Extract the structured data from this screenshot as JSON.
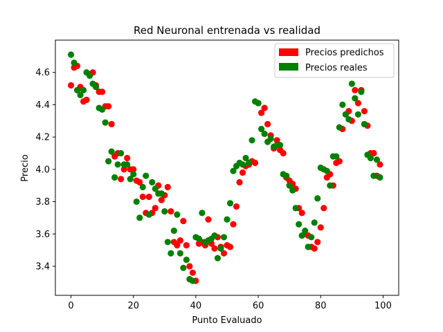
{
  "chart_data": {
    "type": "scatter",
    "title": "Red Neuronal entrenada vs realidad",
    "xlabel": "Punto Evaluado",
    "ylabel": "Precio",
    "xlim": [
      -5,
      105
    ],
    "ylim": [
      3.22,
      4.8
    ],
    "xticks": [
      0,
      20,
      40,
      60,
      80,
      100
    ],
    "yticks": [
      3.4,
      3.6,
      3.8,
      4.0,
      4.2,
      4.4,
      4.6
    ],
    "grid": false,
    "legend_position": "top-right",
    "series": [
      {
        "name": "Precios predichos",
        "color": "#ff0000",
        "x": [
          0,
          1,
          2,
          3,
          4,
          5,
          6,
          7,
          8,
          9,
          10,
          11,
          12,
          13,
          14,
          15,
          16,
          17,
          18,
          19,
          20,
          21,
          22,
          23,
          24,
          25,
          26,
          27,
          28,
          29,
          30,
          31,
          32,
          33,
          34,
          35,
          36,
          37,
          38,
          39,
          40,
          41,
          42,
          43,
          44,
          45,
          46,
          47,
          48,
          49,
          50,
          51,
          52,
          53,
          54,
          55,
          56,
          57,
          58,
          59,
          60,
          61,
          62,
          63,
          64,
          65,
          66,
          67,
          68,
          69,
          70,
          71,
          72,
          73,
          74,
          75,
          76,
          77,
          78,
          79,
          80,
          81,
          82,
          83,
          84,
          85,
          86,
          87,
          88,
          89,
          90,
          91,
          92,
          93,
          94,
          95,
          96,
          97,
          98,
          99
        ],
        "y": [
          4.52,
          4.63,
          4.64,
          4.51,
          4.42,
          4.43,
          4.59,
          4.6,
          4.52,
          4.48,
          4.48,
          4.39,
          4.39,
          4.28,
          4.08,
          4.1,
          3.94,
          4.0,
          4.07,
          4.0,
          4.0,
          3.93,
          3.92,
          3.83,
          3.73,
          3.83,
          3.73,
          3.76,
          3.9,
          3.81,
          3.84,
          3.89,
          3.74,
          3.55,
          3.53,
          3.56,
          3.68,
          3.53,
          3.4,
          3.36,
          3.31,
          3.54,
          3.55,
          3.53,
          3.69,
          3.54,
          3.51,
          3.58,
          3.52,
          3.48,
          3.53,
          3.52,
          3.66,
          3.77,
          3.92,
          3.98,
          4.02,
          4.03,
          4.05,
          4.04,
          4.41,
          4.35,
          4.38,
          4.28,
          4.21,
          4.13,
          4.18,
          4.12,
          4.1,
          3.95,
          3.93,
          3.91,
          3.88,
          3.76,
          3.73,
          3.6,
          3.59,
          3.52,
          3.51,
          3.55,
          3.64,
          3.76,
          3.95,
          3.97,
          3.9,
          4.04,
          4.05,
          4.25,
          4.34,
          4.36,
          4.3,
          4.49,
          4.41,
          4.49,
          4.36,
          4.27,
          4.1,
          4.1,
          3.96,
          4.03
        ]
      },
      {
        "name": "Precios reales",
        "color": "#008000",
        "x": [
          0,
          1,
          2,
          3,
          4,
          5,
          6,
          7,
          8,
          9,
          10,
          11,
          12,
          13,
          14,
          15,
          16,
          17,
          18,
          19,
          20,
          21,
          22,
          23,
          24,
          25,
          26,
          27,
          28,
          29,
          30,
          31,
          32,
          33,
          34,
          35,
          36,
          37,
          38,
          39,
          40,
          41,
          42,
          43,
          44,
          45,
          46,
          47,
          48,
          49,
          50,
          51,
          52,
          53,
          54,
          55,
          56,
          57,
          58,
          59,
          60,
          61,
          62,
          63,
          64,
          65,
          66,
          67,
          68,
          69,
          70,
          71,
          72,
          73,
          74,
          75,
          76,
          77,
          78,
          79,
          80,
          81,
          82,
          83,
          84,
          85,
          86,
          87,
          88,
          89,
          90,
          91,
          92,
          93,
          94,
          95,
          96,
          97,
          98,
          99
        ],
        "y": [
          4.71,
          4.66,
          4.49,
          4.46,
          4.49,
          4.6,
          4.58,
          4.53,
          4.51,
          4.38,
          4.37,
          4.29,
          4.05,
          4.11,
          3.95,
          4.03,
          4.1,
          4.03,
          4.03,
          3.94,
          3.97,
          3.8,
          3.7,
          3.89,
          3.96,
          3.72,
          3.92,
          3.88,
          3.85,
          3.85,
          3.74,
          3.55,
          3.48,
          3.62,
          3.72,
          3.48,
          3.39,
          3.44,
          3.32,
          3.31,
          3.58,
          3.57,
          3.73,
          3.55,
          3.56,
          3.57,
          3.59,
          3.45,
          3.51,
          3.58,
          3.69,
          3.79,
          3.99,
          4.02,
          4.04,
          4.03,
          4.07,
          4.04,
          4.18,
          4.42,
          4.41,
          4.25,
          4.22,
          4.17,
          4.19,
          4.14,
          4.15,
          4.15,
          3.97,
          3.96,
          3.9,
          3.87,
          3.76,
          3.66,
          3.59,
          3.62,
          3.52,
          3.58,
          3.67,
          3.82,
          4.01,
          4.0,
          3.99,
          3.9,
          4.08,
          4.08,
          4.26,
          4.4,
          4.34,
          4.31,
          4.53,
          4.44,
          4.34,
          4.48,
          4.28,
          4.09,
          4.07,
          3.96,
          4.06,
          3.95
        ]
      }
    ]
  }
}
